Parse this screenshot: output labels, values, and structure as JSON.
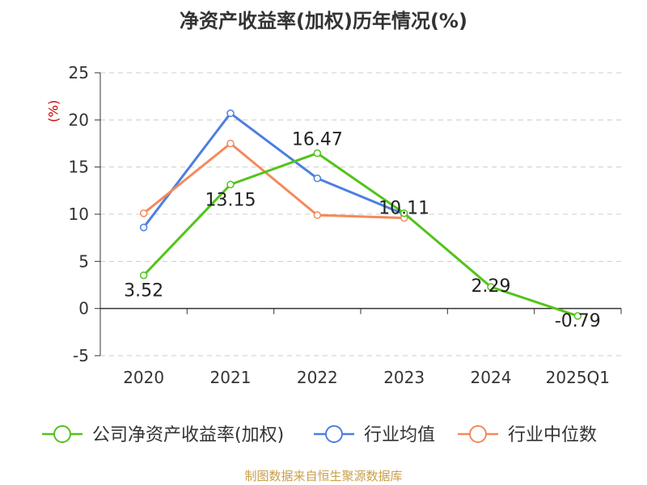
{
  "title": "净资产收益率(加权)历年情况(%)",
  "unit": "(%)",
  "source": "制图数据来自恒生聚源数据库",
  "colors": {
    "company": "#52c41a",
    "industry_avg": "#4e7fdf",
    "industry_median": "#f5895a",
    "grid": "#cccccc",
    "axis": "#333333",
    "text": "#333333"
  },
  "chart_data": {
    "type": "line",
    "title": "净资产收益率(加权)历年情况(%)",
    "ylabel": "(%)",
    "xlabel": "",
    "categories": [
      "2020",
      "2021",
      "2022",
      "2023",
      "2024",
      "2025Q1"
    ],
    "ylim": [
      -5,
      25
    ],
    "yticks": [
      25,
      20,
      15,
      10,
      5,
      0,
      -5
    ],
    "grid": true,
    "legend": "bottom",
    "series": [
      {
        "name": "公司净资产收益率(加权)",
        "color": "#52c41a",
        "values": [
          3.52,
          13.15,
          16.47,
          10.11,
          2.29,
          -0.79
        ],
        "labels": [
          "3.52",
          "13.15",
          "16.47",
          "10.11",
          "2.29",
          "-0.79"
        ]
      },
      {
        "name": "行业均值",
        "color": "#4e7fdf",
        "values": [
          8.6,
          20.7,
          13.8,
          10.0,
          null,
          null
        ]
      },
      {
        "name": "行业中位数",
        "color": "#f5895a",
        "values": [
          10.1,
          17.5,
          9.9,
          9.6,
          null,
          null
        ]
      }
    ]
  }
}
